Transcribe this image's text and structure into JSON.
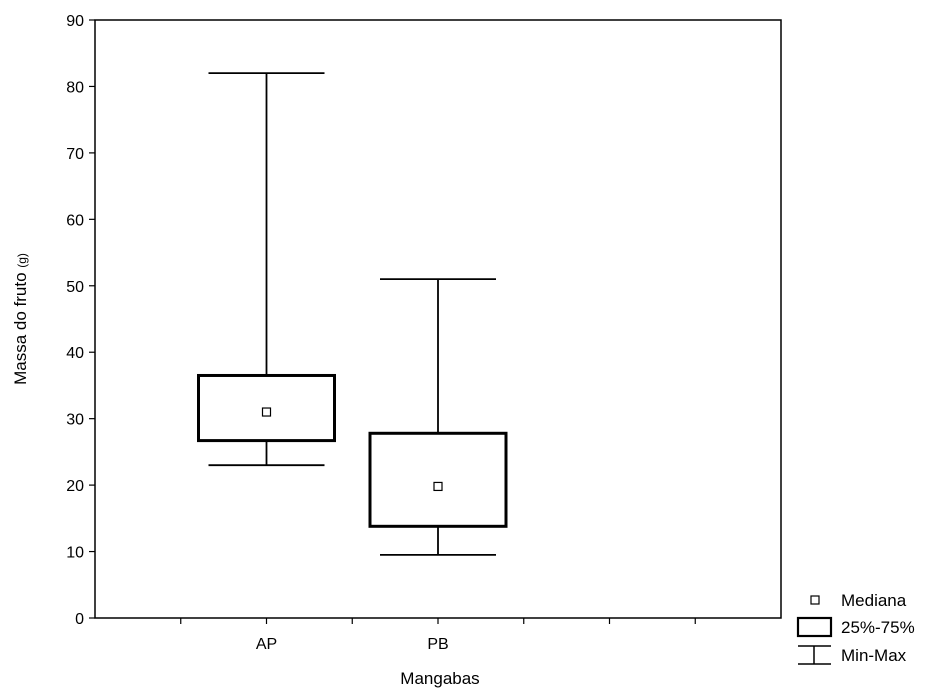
{
  "chart_data": {
    "type": "boxplot",
    "xlabel": "Mangabas",
    "ylabel": "Massa do fruto",
    "ylabel_unit": "(g)",
    "ylim": [
      0,
      90
    ],
    "yticks": [
      0,
      10,
      20,
      30,
      40,
      50,
      60,
      70,
      80,
      90
    ],
    "categories": [
      "AP",
      "PB"
    ],
    "x_slots": 4,
    "boxes": [
      {
        "category": "AP",
        "min": 23,
        "q1": 26.7,
        "median": 31,
        "q3": 36.5,
        "max": 82
      },
      {
        "category": "PB",
        "min": 9.5,
        "q1": 13.8,
        "median": 19.8,
        "q3": 27.8,
        "max": 51
      }
    ],
    "grid": false,
    "legend": {
      "position": "bottom-right",
      "entries": [
        {
          "symbol": "median-square",
          "label": "Mediana"
        },
        {
          "symbol": "box",
          "label": "25%-75%"
        },
        {
          "symbol": "whisker",
          "label": "Min-Max"
        }
      ]
    },
    "colors": {
      "line": "#000000",
      "background": "#ffffff"
    }
  }
}
